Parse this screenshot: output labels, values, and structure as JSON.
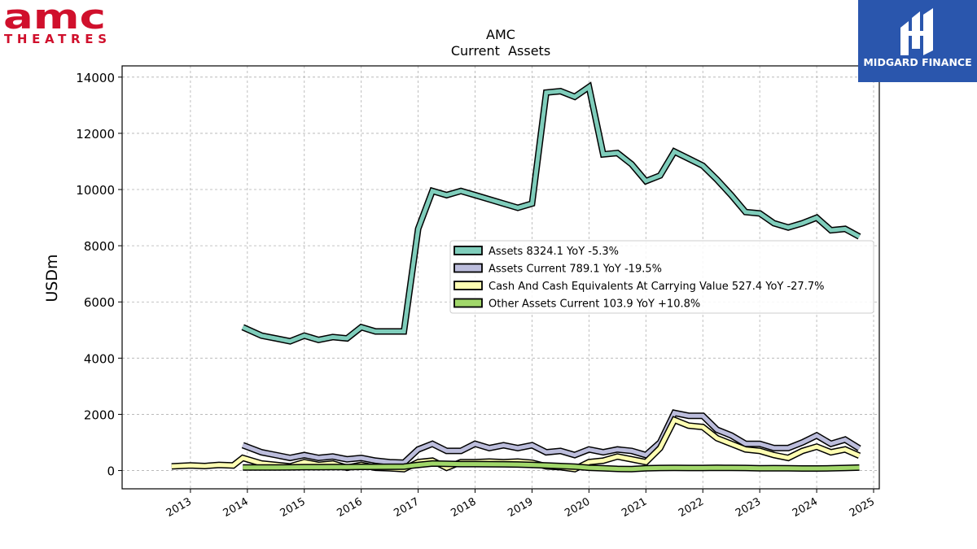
{
  "logos": {
    "left": {
      "word": "amc",
      "sub": "THEATRES",
      "color": "#d0102c"
    },
    "right": {
      "name": "MIDGARD FINANCE",
      "bg": "#2a56ad"
    }
  },
  "chart_data": {
    "type": "line",
    "title": "AMC",
    "subtitle": "Current  Assets",
    "ylabel": "USDm",
    "xlabel": "",
    "ylim": [
      -650,
      14400
    ],
    "xlim": [
      2011.8,
      2025.1
    ],
    "yticks": [
      0,
      2000,
      4000,
      6000,
      8000,
      10000,
      12000,
      14000
    ],
    "xticks": [
      2013,
      2014,
      2015,
      2016,
      2017,
      2018,
      2019,
      2020,
      2021,
      2022,
      2023,
      2024,
      2025
    ],
    "grid": true,
    "legend_position": "center-right",
    "series": [
      {
        "name": "Assets",
        "legend": "Assets  8324.1 YoY -5.3%",
        "color": "#7fcdbb",
        "x": [
          2013.92,
          2014.25,
          2014.5,
          2014.75,
          2015.0,
          2015.25,
          2015.5,
          2015.75,
          2016.0,
          2016.25,
          2016.5,
          2016.75,
          2017.0,
          2017.25,
          2017.5,
          2017.75,
          2018.0,
          2018.25,
          2018.5,
          2018.75,
          2019.0,
          2019.25,
          2019.5,
          2019.75,
          2020.0,
          2020.25,
          2020.5,
          2020.75,
          2021.0,
          2021.25,
          2021.5,
          2021.75,
          2022.0,
          2022.25,
          2022.5,
          2022.75,
          2023.0,
          2023.25,
          2023.5,
          2023.75,
          2024.0,
          2024.25,
          2024.5,
          2024.75
        ],
        "y": [
          5100,
          4800,
          4700,
          4600,
          4800,
          4650,
          4750,
          4700,
          5100,
          4950,
          4950,
          4950,
          8600,
          9950,
          9800,
          9950,
          9800,
          9650,
          9500,
          9350,
          9500,
          13450,
          13500,
          13300,
          13650,
          11250,
          11300,
          10900,
          10300,
          10500,
          11350,
          11100,
          10850,
          10350,
          9800,
          9200,
          9150,
          8800,
          8650,
          8800,
          9000,
          8550,
          8600,
          8324
        ]
      },
      {
        "name": "Assets Current",
        "legend": "Assets Current  789.1 YoY -19.5%",
        "color": "#bcbddc",
        "x": [
          2013.92,
          2014.25,
          2014.5,
          2014.75,
          2015.0,
          2015.25,
          2015.5,
          2015.75,
          2016.0,
          2016.25,
          2016.5,
          2016.75,
          2017.0,
          2017.25,
          2017.5,
          2017.75,
          2018.0,
          2018.25,
          2018.5,
          2018.75,
          2019.0,
          2019.25,
          2019.5,
          2019.75,
          2020.0,
          2020.25,
          2020.5,
          2020.75,
          2021.0,
          2021.25,
          2021.5,
          2021.75,
          2022.0,
          2022.25,
          2022.5,
          2022.75,
          2023.0,
          2023.25,
          2023.5,
          2023.75,
          2024.0,
          2024.25,
          2024.5,
          2024.75
        ],
        "y": [
          900,
          650,
          550,
          450,
          550,
          450,
          500,
          400,
          450,
          350,
          300,
          280,
          750,
          950,
          700,
          700,
          950,
          800,
          900,
          800,
          900,
          650,
          700,
          550,
          750,
          650,
          750,
          700,
          550,
          1000,
          2050,
          1950,
          1950,
          1450,
          1250,
          950,
          950,
          800,
          800,
          1000,
          1250,
          950,
          1100,
          789
        ]
      },
      {
        "name": "Cash And Cash Equivalents At Carrying Value",
        "legend": "Cash And Cash Equivalents At Carrying Value  527.4 YoY -27.7%",
        "color": "#ffffb2",
        "x": [
          2012.67,
          2013.0,
          2013.25,
          2013.5,
          2013.75,
          2013.92,
          2014.25,
          2014.5,
          2014.75,
          2015.0,
          2015.25,
          2015.5,
          2015.75,
          2016.0,
          2016.25,
          2016.5,
          2016.75,
          2017.0,
          2017.25,
          2017.5,
          2017.75,
          2018.0,
          2018.25,
          2018.5,
          2018.75,
          2019.0,
          2019.25,
          2019.5,
          2019.75,
          2020.0,
          2020.25,
          2020.5,
          2020.75,
          2021.0,
          2021.25,
          2021.5,
          2021.75,
          2022.0,
          2022.25,
          2022.5,
          2022.75,
          2023.0,
          2023.25,
          2023.5,
          2023.75,
          2024.0,
          2024.25,
          2024.5,
          2024.75
        ],
        "y": [
          150,
          180,
          160,
          200,
          180,
          450,
          250,
          200,
          150,
          300,
          200,
          250,
          100,
          200,
          100,
          80,
          50,
          300,
          350,
          100,
          300,
          300,
          320,
          300,
          320,
          280,
          150,
          120,
          50,
          300,
          350,
          500,
          400,
          300,
          800,
          1800,
          1600,
          1550,
          1150,
          950,
          750,
          700,
          550,
          450,
          700,
          850,
          650,
          750,
          527
        ]
      },
      {
        "name": "Other Assets Current",
        "legend": "Other Assets Current  103.9 YoY +10.8%",
        "color": "#a1d76a",
        "x": [
          2013.92,
          2014.25,
          2014.5,
          2014.75,
          2015.0,
          2015.25,
          2015.5,
          2015.75,
          2016.0,
          2016.25,
          2016.5,
          2016.75,
          2017.0,
          2017.25,
          2017.5,
          2017.75,
          2018.0,
          2018.25,
          2018.5,
          2018.75,
          2019.0,
          2019.25,
          2019.5,
          2019.75,
          2020.0,
          2020.25,
          2020.5,
          2020.75,
          2021.0,
          2021.25,
          2021.5,
          2021.75,
          2022.0,
          2022.25,
          2022.5,
          2022.75,
          2023.0,
          2023.25,
          2023.5,
          2023.75,
          2024.0,
          2024.25,
          2024.5,
          2024.75
        ],
        "y": [
          110,
          110,
          110,
          115,
          120,
          120,
          125,
          125,
          130,
          130,
          135,
          140,
          200,
          250,
          240,
          230,
          230,
          225,
          220,
          215,
          200,
          180,
          160,
          140,
          100,
          80,
          60,
          50,
          80,
          90,
          95,
          90,
          90,
          100,
          95,
          90,
          80,
          85,
          80,
          75,
          75,
          80,
          90,
          104
        ]
      }
    ]
  }
}
